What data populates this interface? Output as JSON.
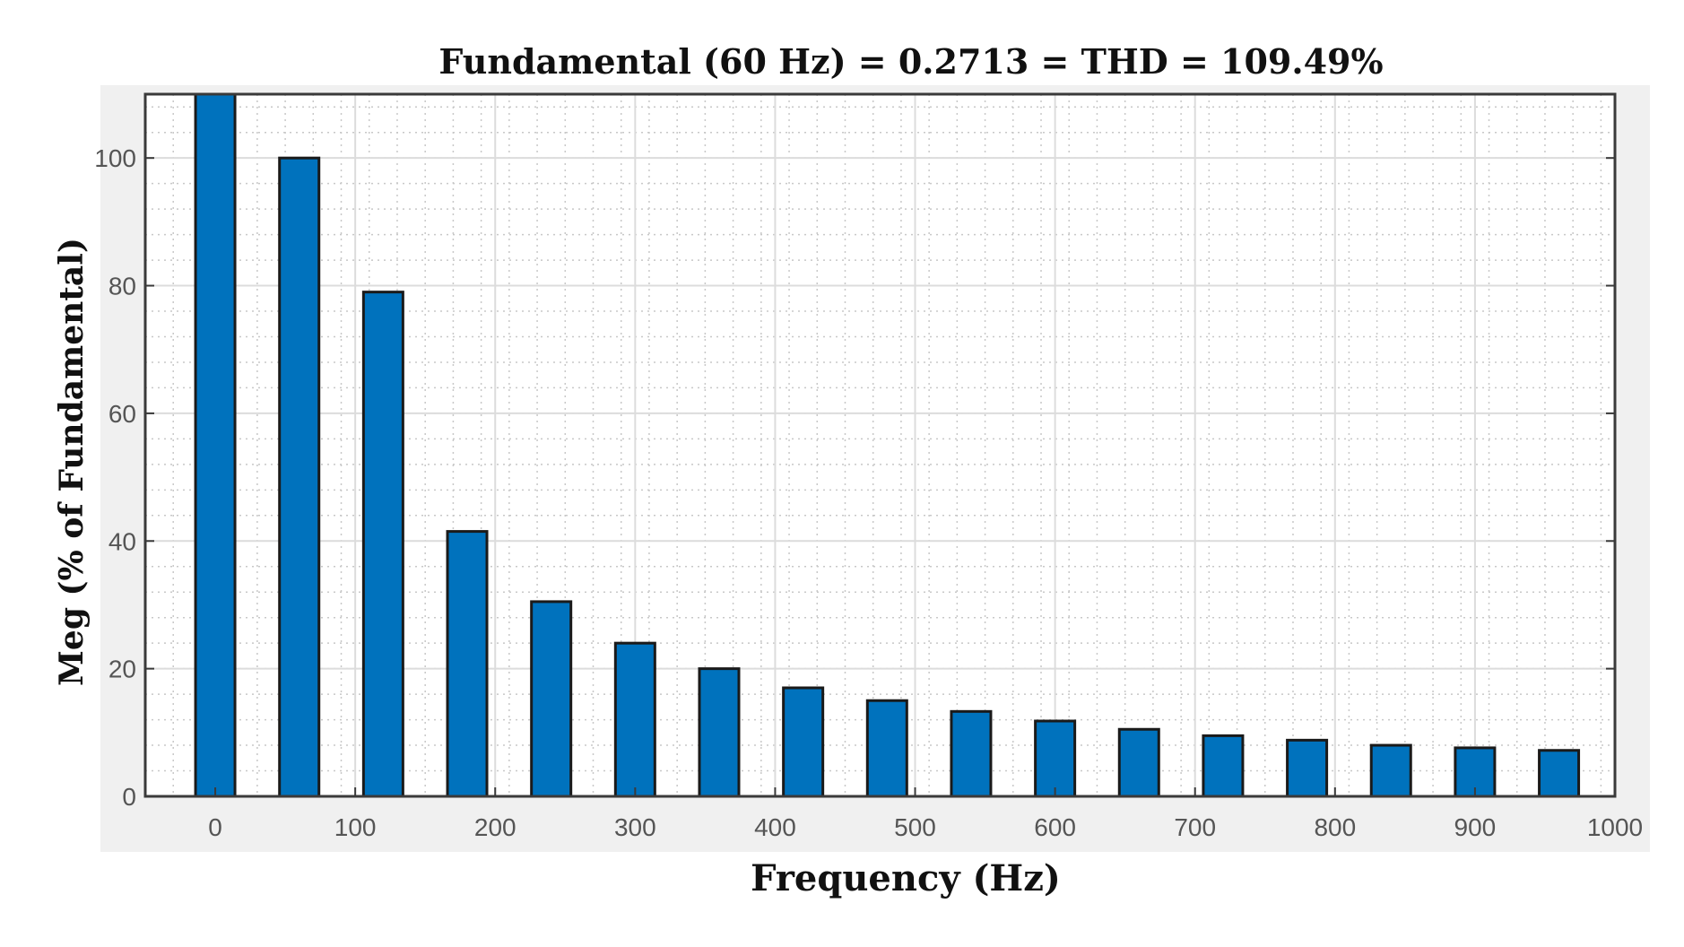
{
  "chart_data": {
    "type": "bar",
    "title": "Fundamental (60 Hz) = 0.2713 = THD = 109.49%",
    "xlabel": "Frequency (Hz)",
    "ylabel": "Meg (% of Fundamental)",
    "x": [
      0,
      60,
      120,
      180,
      240,
      300,
      360,
      420,
      480,
      540,
      600,
      660,
      720,
      780,
      840,
      900,
      960
    ],
    "values": [
      110,
      100,
      79,
      41.5,
      30.5,
      24,
      20,
      17,
      15,
      13.3,
      11.8,
      10.5,
      9.5,
      8.8,
      8.0,
      7.6,
      7.2
    ],
    "xlim": [
      -50,
      1000
    ],
    "ylim": [
      0,
      110
    ],
    "xticks": [
      0,
      100,
      200,
      300,
      400,
      500,
      600,
      700,
      800,
      900,
      1000
    ],
    "yticks": [
      0,
      20,
      40,
      60,
      80,
      100
    ],
    "grid": true,
    "minor_grid": true,
    "bar_color": "#0072BD",
    "bar_edge_color": "#1a1a1a"
  }
}
